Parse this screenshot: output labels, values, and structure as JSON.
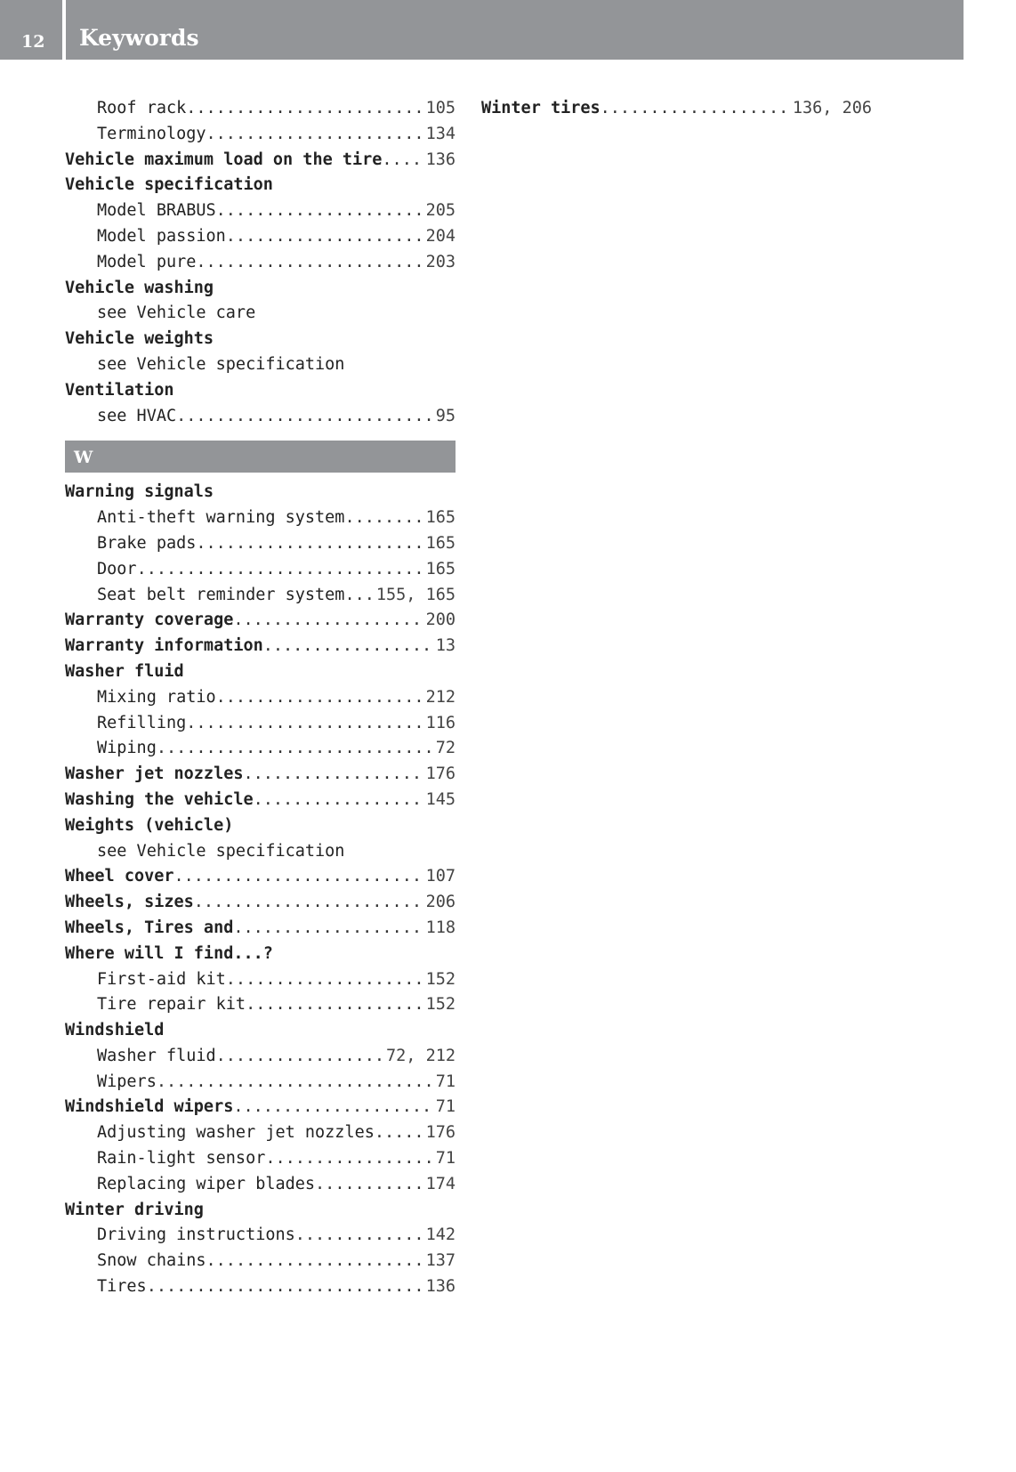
{
  "header": {
    "page_number": "12",
    "title": "Keywords"
  },
  "left_column": {
    "before": [
      {
        "text": "Roof rack",
        "page": "105",
        "sub": true,
        "bold": false
      },
      {
        "text": "Terminology",
        "page": "134",
        "sub": true,
        "bold": false
      },
      {
        "text": "Vehicle maximum load on the tire",
        "page": "136",
        "sub": false,
        "bold": true
      },
      {
        "text": "Vehicle specification",
        "page": "",
        "sub": false,
        "bold": true
      },
      {
        "text": "Model BRABUS",
        "page": "205",
        "sub": true,
        "bold": false
      },
      {
        "text": "Model passion",
        "page": "204",
        "sub": true,
        "bold": false
      },
      {
        "text": "Model pure",
        "page": "203",
        "sub": true,
        "bold": false
      },
      {
        "text": "Vehicle washing",
        "page": "",
        "sub": false,
        "bold": true
      },
      {
        "text": "see Vehicle care",
        "page": "",
        "sub": true,
        "bold": false
      },
      {
        "text": "Vehicle weights",
        "page": "",
        "sub": false,
        "bold": true
      },
      {
        "text": "see Vehicle specification",
        "page": "",
        "sub": true,
        "bold": false
      },
      {
        "text": "Ventilation",
        "page": "",
        "sub": false,
        "bold": true
      },
      {
        "text": "see HVAC",
        "page": "95",
        "sub": true,
        "bold": false
      }
    ],
    "section_letter": "W",
    "after": [
      {
        "text": "Warning signals",
        "page": "",
        "sub": false,
        "bold": true
      },
      {
        "text": "Anti-theft warning system",
        "page": "165",
        "sub": true,
        "bold": false
      },
      {
        "text": "Brake pads",
        "page": "165",
        "sub": true,
        "bold": false
      },
      {
        "text": "Door",
        "page": "165",
        "sub": true,
        "bold": false
      },
      {
        "text": "Seat belt reminder system",
        "page": "155, 165",
        "sub": true,
        "bold": false
      },
      {
        "text": "Warranty coverage",
        "page": "200",
        "sub": false,
        "bold": true
      },
      {
        "text": "Warranty information",
        "page": "13",
        "sub": false,
        "bold": true
      },
      {
        "text": "Washer fluid",
        "page": "",
        "sub": false,
        "bold": true
      },
      {
        "text": "Mixing ratio",
        "page": "212",
        "sub": true,
        "bold": false
      },
      {
        "text": "Refilling",
        "page": "116",
        "sub": true,
        "bold": false
      },
      {
        "text": "Wiping",
        "page": "72",
        "sub": true,
        "bold": false
      },
      {
        "text": "Washer jet nozzles",
        "page": "176",
        "sub": false,
        "bold": true
      },
      {
        "text": "Washing the vehicle",
        "page": "145",
        "sub": false,
        "bold": true
      },
      {
        "text": "Weights (vehicle)",
        "page": "",
        "sub": false,
        "bold": true
      },
      {
        "text": "see Vehicle specification",
        "page": "",
        "sub": true,
        "bold": false
      },
      {
        "text": "Wheel cover",
        "page": "107",
        "sub": false,
        "bold": true
      },
      {
        "text": "Wheels, sizes",
        "page": "206",
        "sub": false,
        "bold": true
      },
      {
        "text": "Wheels, Tires and",
        "page": "118",
        "sub": false,
        "bold": true
      },
      {
        "text": "Where will I find...?",
        "page": "",
        "sub": false,
        "bold": true
      },
      {
        "text": "First-aid kit",
        "page": "152",
        "sub": true,
        "bold": false
      },
      {
        "text": "Tire repair kit",
        "page": "152",
        "sub": true,
        "bold": false
      },
      {
        "text": "Windshield",
        "page": "",
        "sub": false,
        "bold": true
      },
      {
        "text": "Washer fluid",
        "page": "72, 212",
        "sub": true,
        "bold": false
      },
      {
        "text": "Wipers",
        "page": "71",
        "sub": true,
        "bold": false
      },
      {
        "text": "Windshield wipers",
        "page": "71",
        "sub": false,
        "bold": true
      },
      {
        "text": "Adjusting washer jet nozzles",
        "page": "176",
        "sub": true,
        "bold": false
      },
      {
        "text": "Rain-light sensor",
        "page": "71",
        "sub": true,
        "bold": false
      },
      {
        "text": "Replacing wiper blades",
        "page": "174",
        "sub": true,
        "bold": false
      },
      {
        "text": "Winter driving",
        "page": "",
        "sub": false,
        "bold": true
      },
      {
        "text": "Driving instructions",
        "page": "142",
        "sub": true,
        "bold": false
      },
      {
        "text": "Snow chains",
        "page": "137",
        "sub": true,
        "bold": false
      },
      {
        "text": "Tires",
        "page": "136",
        "sub": true,
        "bold": false
      }
    ]
  },
  "right_column": [
    {
      "text": "Winter tires",
      "page": "136, 206",
      "sub": false,
      "bold": true
    }
  ],
  "colors": {
    "header_gray": "#939598",
    "text": "#222222"
  }
}
